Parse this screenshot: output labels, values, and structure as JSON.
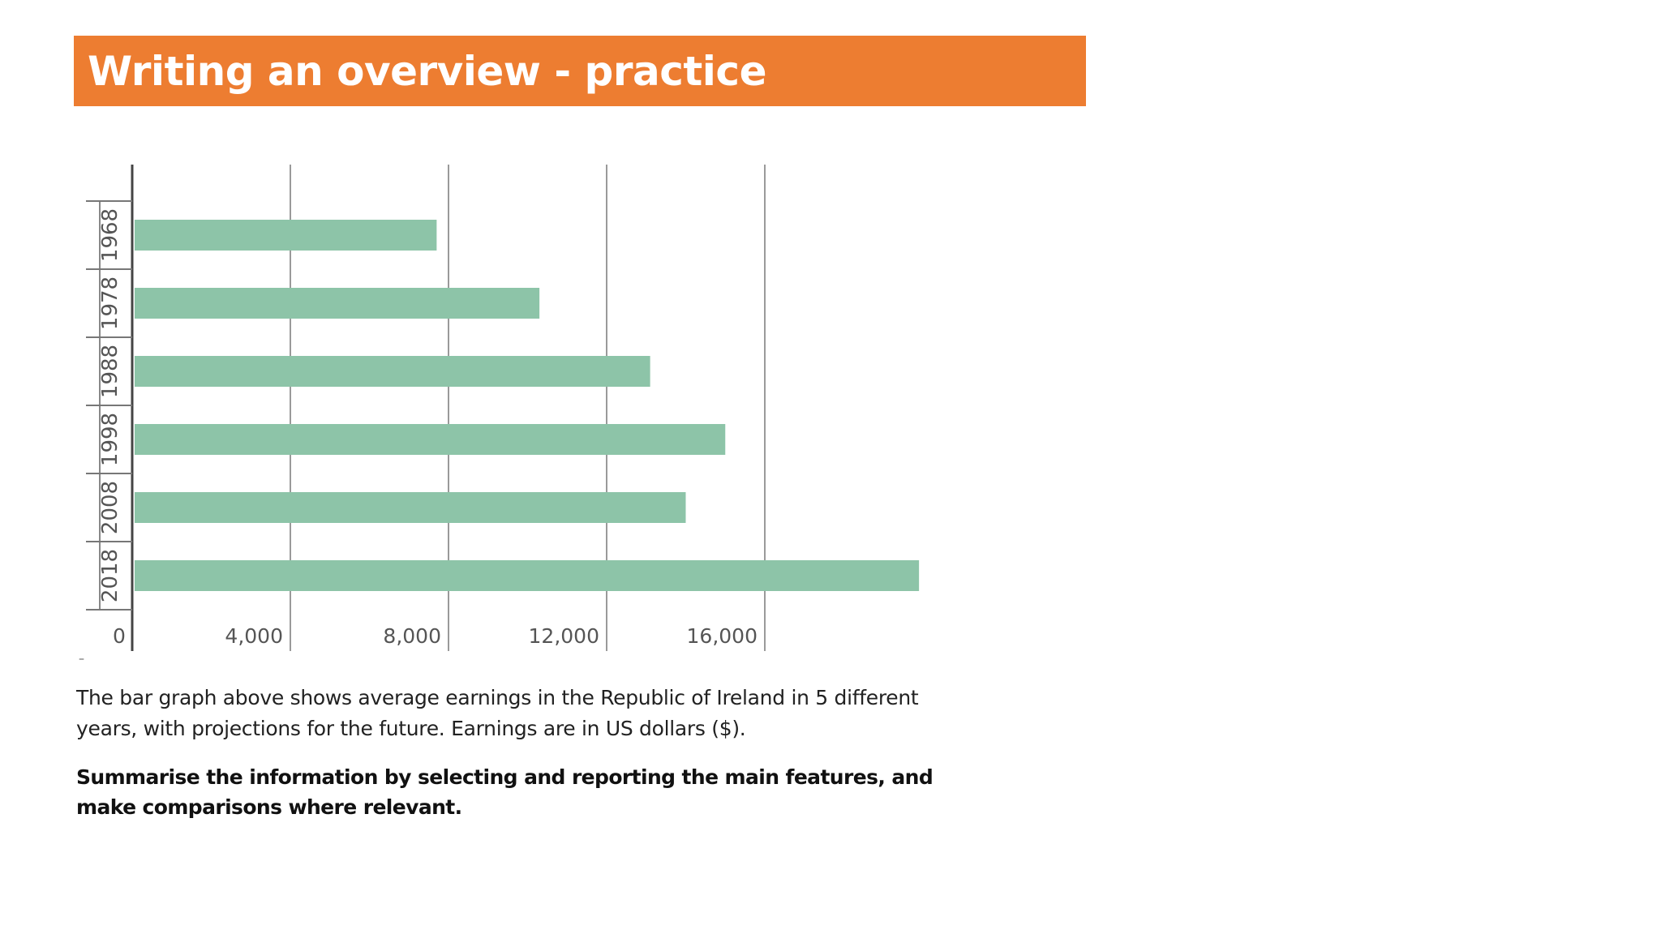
{
  "slide": {
    "title": "Writing an overview - practice",
    "title_bg": "#ED7D31",
    "description": "The bar graph above shows average earnings in the Republic of Ireland in 5 different years, with projections for the future. Earnings are in US dollars ($).",
    "task": "Summarise the information by selecting and reporting the main features, and make comparisons where relevant.",
    "stray_mark": "–"
  },
  "chart_data": {
    "type": "bar",
    "orientation": "horizontal",
    "categories": [
      "1968",
      "1978",
      "1988",
      "1998",
      "2008",
      "2018"
    ],
    "values": [
      7700,
      10300,
      13100,
      15000,
      14000,
      19900
    ],
    "xlim": [
      0,
      20000
    ],
    "xticks": [
      0,
      4000,
      8000,
      12000,
      16000
    ],
    "xtick_labels": [
      "0",
      "4,000",
      "8,000",
      "12,000",
      "16,000"
    ],
    "grid": true,
    "bar_color": "#8DC4A8",
    "title": "",
    "xlabel": "",
    "ylabel": ""
  }
}
